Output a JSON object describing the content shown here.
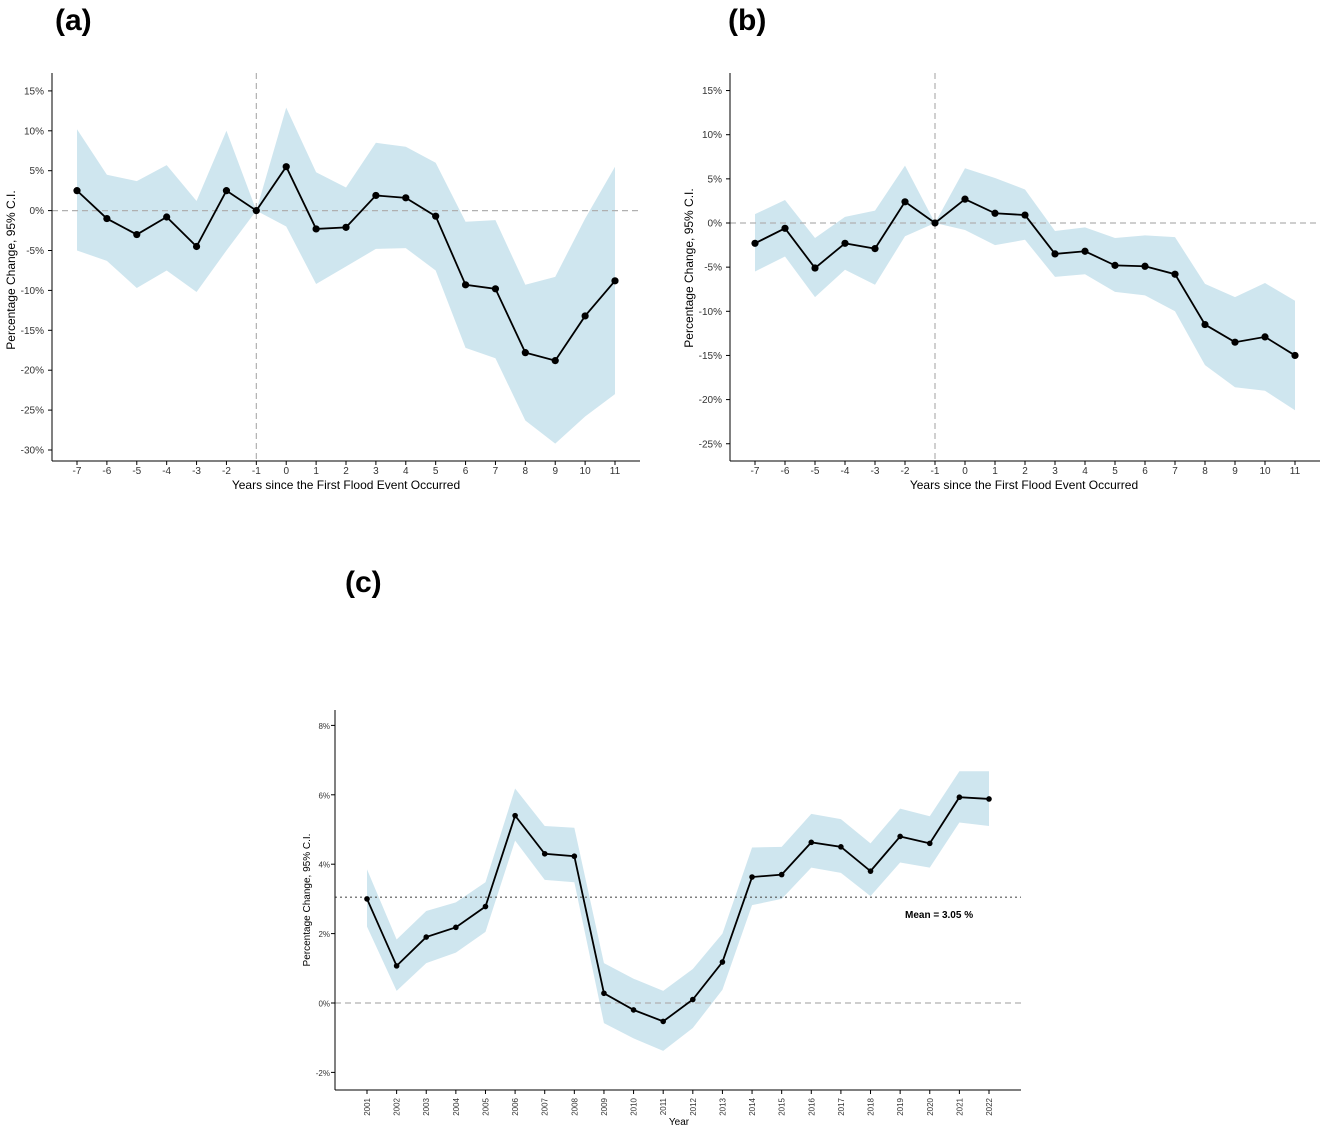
{
  "chart_data": [
    {
      "panel_label": "(a)",
      "type": "line",
      "xlabel": "Years since the First Flood Event Occurred",
      "ylabel": "Percentage Change, 95% C.I.",
      "x": [
        -7,
        -6,
        -5,
        -4,
        -3,
        -2,
        -1,
        0,
        1,
        2,
        3,
        4,
        5,
        6,
        7,
        8,
        9,
        10,
        11
      ],
      "x_tick_labels": [
        "-7",
        "-6",
        "-5",
        "-4",
        "-3",
        "-2",
        "-1",
        "0",
        "1",
        "2",
        "3",
        "4",
        "5",
        "6",
        "7",
        "8",
        "9",
        "10",
        "11"
      ],
      "values": [
        2.5,
        -1.0,
        -3.0,
        -0.8,
        -4.5,
        2.5,
        0.0,
        5.5,
        -2.3,
        -2.1,
        1.9,
        1.6,
        -0.7,
        -9.3,
        -9.8,
        -17.8,
        -18.8,
        -13.2,
        -8.8
      ],
      "ci_lower": [
        -5.0,
        -6.3,
        -9.7,
        -7.5,
        -10.2,
        -5.0,
        0.0,
        -2.0,
        -9.2,
        -7.0,
        -4.8,
        -4.7,
        -7.5,
        -17.2,
        -18.5,
        -26.3,
        -29.2,
        -25.8,
        -23.0
      ],
      "ci_upper": [
        10.2,
        4.5,
        3.7,
        5.7,
        1.2,
        10.0,
        0.0,
        12.9,
        4.8,
        2.9,
        8.5,
        8.0,
        6.0,
        -1.4,
        -1.2,
        -9.3,
        -8.3,
        -1.0,
        5.5
      ],
      "ylim": [
        -32,
        17
      ],
      "y_ticks": [
        15,
        10,
        5,
        0,
        -5,
        -10,
        -15,
        -20,
        -25,
        -30
      ],
      "y_tick_labels": [
        "15%",
        "10%",
        "5%",
        "0%",
        "-5%",
        "-10%",
        "-15%",
        "-20%",
        "-25%",
        "-30%"
      ],
      "vline_x": -1,
      "hline_y": 0
    },
    {
      "panel_label": "(b)",
      "type": "line",
      "xlabel": "Years since the First Flood Event Occurred",
      "ylabel": "Percentage Change, 95% C.I.",
      "x": [
        -7,
        -6,
        -5,
        -4,
        -3,
        -2,
        -1,
        0,
        1,
        2,
        3,
        4,
        5,
        6,
        7,
        8,
        9,
        10,
        11
      ],
      "x_tick_labels": [
        "-7",
        "-6",
        "-5",
        "-4",
        "-3",
        "-2",
        "-1",
        "0",
        "1",
        "2",
        "3",
        "4",
        "5",
        "6",
        "7",
        "8",
        "9",
        "10",
        "11"
      ],
      "values": [
        -2.3,
        -0.6,
        -5.1,
        -2.3,
        -2.9,
        2.4,
        0.0,
        2.7,
        1.1,
        0.9,
        -3.5,
        -3.2,
        -4.8,
        -4.9,
        -5.8,
        -11.5,
        -13.5,
        -12.9,
        -15.0
      ],
      "ci_lower": [
        -5.5,
        -3.8,
        -8.4,
        -5.3,
        -7.0,
        -1.5,
        0.0,
        -0.8,
        -2.5,
        -1.9,
        -6.1,
        -5.8,
        -7.8,
        -8.2,
        -10.0,
        -16.1,
        -18.6,
        -19.0,
        -21.2
      ],
      "ci_upper": [
        1.0,
        2.6,
        -1.7,
        0.7,
        1.4,
        6.5,
        0.0,
        6.2,
        5.1,
        3.8,
        -0.9,
        -0.5,
        -1.7,
        -1.4,
        -1.6,
        -6.9,
        -8.4,
        -6.8,
        -8.8
      ],
      "ylim": [
        -27,
        17
      ],
      "y_ticks": [
        15,
        10,
        5,
        0,
        -5,
        -10,
        -15,
        -20,
        -25
      ],
      "y_tick_labels": [
        "15%",
        "10%",
        "5%",
        "0%",
        "-5%",
        "-10%",
        "-15%",
        "-20%",
        "-25%"
      ],
      "vline_x": -1,
      "hline_y": 0
    },
    {
      "panel_label": "(c)",
      "type": "line",
      "xlabel": "Year",
      "ylabel": "Percentage Change, 95% C.I.",
      "x": [
        2001,
        2002,
        2003,
        2004,
        2005,
        2006,
        2007,
        2008,
        2009,
        2010,
        2011,
        2012,
        2013,
        2014,
        2015,
        2016,
        2017,
        2018,
        2019,
        2020,
        2021,
        2022
      ],
      "x_tick_labels": [
        "2001",
        "2002",
        "2003",
        "2004",
        "2005",
        "2006",
        "2007",
        "2008",
        "2009",
        "2010",
        "2011",
        "2012",
        "2013",
        "2014",
        "2015",
        "2016",
        "2017",
        "2018",
        "2019",
        "2020",
        "2021",
        "2022"
      ],
      "values": [
        3.0,
        1.07,
        1.9,
        2.18,
        2.78,
        5.4,
        4.3,
        4.23,
        0.28,
        -0.2,
        -0.53,
        0.1,
        1.18,
        3.63,
        3.7,
        4.63,
        4.5,
        3.8,
        4.8,
        4.6,
        5.93,
        5.88
      ],
      "ci_lower": [
        2.2,
        0.35,
        1.15,
        1.45,
        2.05,
        4.68,
        3.55,
        3.48,
        -0.58,
        -1.02,
        -1.38,
        -0.72,
        0.38,
        2.82,
        3.0,
        3.9,
        3.75,
        3.08,
        4.05,
        3.9,
        5.2,
        5.1
      ],
      "ci_upper": [
        3.85,
        1.83,
        2.65,
        2.9,
        3.48,
        6.18,
        5.1,
        5.05,
        1.15,
        0.7,
        0.35,
        0.98,
        2.0,
        4.48,
        4.5,
        5.45,
        5.3,
        4.6,
        5.6,
        5.38,
        6.68,
        6.68
      ],
      "ylim": [
        -2.5,
        8.5
      ],
      "y_ticks": [
        8,
        6,
        4,
        2,
        0,
        -2
      ],
      "y_tick_labels": [
        "8%",
        "6%",
        "4%",
        "2%",
        "0%",
        "-2%"
      ],
      "hline_y": 0,
      "mean_line_y": 3.05,
      "annotation": "Mean = 3.05 %"
    }
  ],
  "colors": {
    "ci_band": "#cfe6ef",
    "line": "#000000",
    "ref_line": "#b0b0b0",
    "axis": "#000000",
    "tick_text": "#333333"
  }
}
